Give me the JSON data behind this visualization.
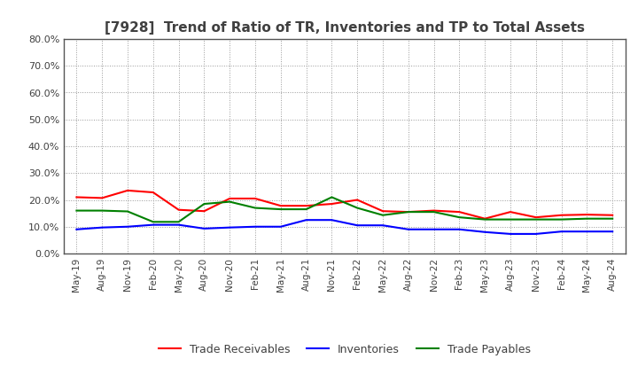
{
  "title": "[7928]  Trend of Ratio of TR, Inventories and TP to Total Assets",
  "x_labels": [
    "May-19",
    "Aug-19",
    "Nov-19",
    "Feb-20",
    "May-20",
    "Aug-20",
    "Nov-20",
    "Feb-21",
    "May-21",
    "Aug-21",
    "Nov-21",
    "Feb-22",
    "May-22",
    "Aug-22",
    "Nov-22",
    "Feb-23",
    "May-23",
    "Aug-23",
    "Nov-23",
    "Feb-24",
    "May-24",
    "Aug-24"
  ],
  "trade_receivables": [
    0.21,
    0.207,
    0.235,
    0.228,
    0.163,
    0.158,
    0.205,
    0.205,
    0.178,
    0.178,
    0.185,
    0.2,
    0.158,
    0.155,
    0.16,
    0.155,
    0.13,
    0.155,
    0.135,
    0.143,
    0.145,
    0.143
  ],
  "inventories": [
    0.09,
    0.097,
    0.1,
    0.107,
    0.107,
    0.093,
    0.097,
    0.1,
    0.1,
    0.125,
    0.125,
    0.105,
    0.105,
    0.09,
    0.09,
    0.09,
    0.08,
    0.073,
    0.073,
    0.082,
    0.082,
    0.082
  ],
  "trade_payables": [
    0.16,
    0.16,
    0.157,
    0.118,
    0.118,
    0.185,
    0.193,
    0.17,
    0.165,
    0.165,
    0.21,
    0.17,
    0.143,
    0.155,
    0.155,
    0.135,
    0.127,
    0.127,
    0.127,
    0.127,
    0.13,
    0.13
  ],
  "colors": {
    "trade_receivables": "#ff0000",
    "inventories": "#0000ff",
    "trade_payables": "#008000"
  },
  "legend_labels": [
    "Trade Receivables",
    "Inventories",
    "Trade Payables"
  ],
  "ylim": [
    0.0,
    0.8
  ],
  "yticks": [
    0.0,
    0.1,
    0.2,
    0.3,
    0.4,
    0.5,
    0.6,
    0.7,
    0.8
  ],
  "background_color": "#ffffff",
  "grid_color": "#999999",
  "title_color": "#404040",
  "tick_color": "#404040"
}
